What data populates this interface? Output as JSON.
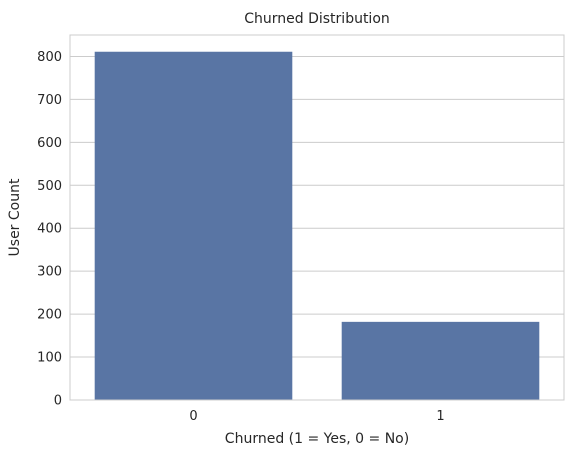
{
  "chart_data": {
    "type": "bar",
    "title": "Churned Distribution",
    "xlabel": "Churned (1 = Yes, 0 = No)",
    "ylabel": "User Count",
    "categories": [
      "0",
      "1"
    ],
    "values": [
      811,
      182
    ],
    "ylim": [
      0,
      850
    ],
    "yticks": [
      0,
      100,
      200,
      300,
      400,
      500,
      600,
      700,
      800
    ],
    "grid": "y-axis, light gray",
    "legend": "none",
    "colors": {
      "bar": "#5975a4",
      "grid": "#cccccc",
      "axes_border": "#cccccc",
      "text": "#262626"
    }
  }
}
